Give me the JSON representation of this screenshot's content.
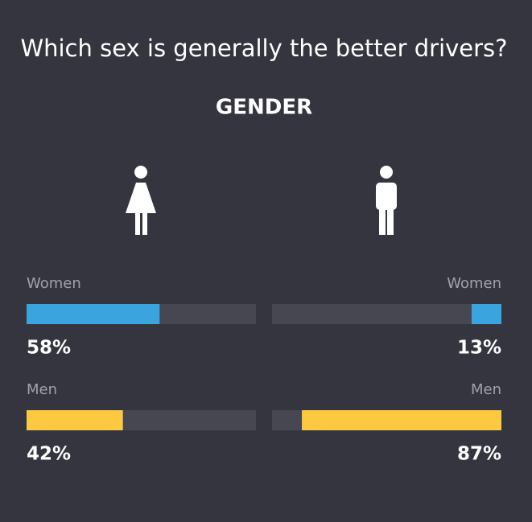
{
  "chart_data": {
    "type": "bar",
    "title": "Which sex is generally the better drivers?",
    "subtitle": "GENDER",
    "categories": [
      null,
      null
    ],
    "series": [
      {
        "name": "Women",
        "color": "#3aa4de",
        "values": [
          58,
          13
        ],
        "value_labels": [
          "58%",
          "13%"
        ]
      },
      {
        "name": "Men",
        "color": "#fdc941",
        "values": [
          42,
          87
        ],
        "value_labels": [
          "42%",
          "87%"
        ]
      }
    ],
    "xlim": [
      0,
      100
    ],
    "track_color": "#464751"
  }
}
